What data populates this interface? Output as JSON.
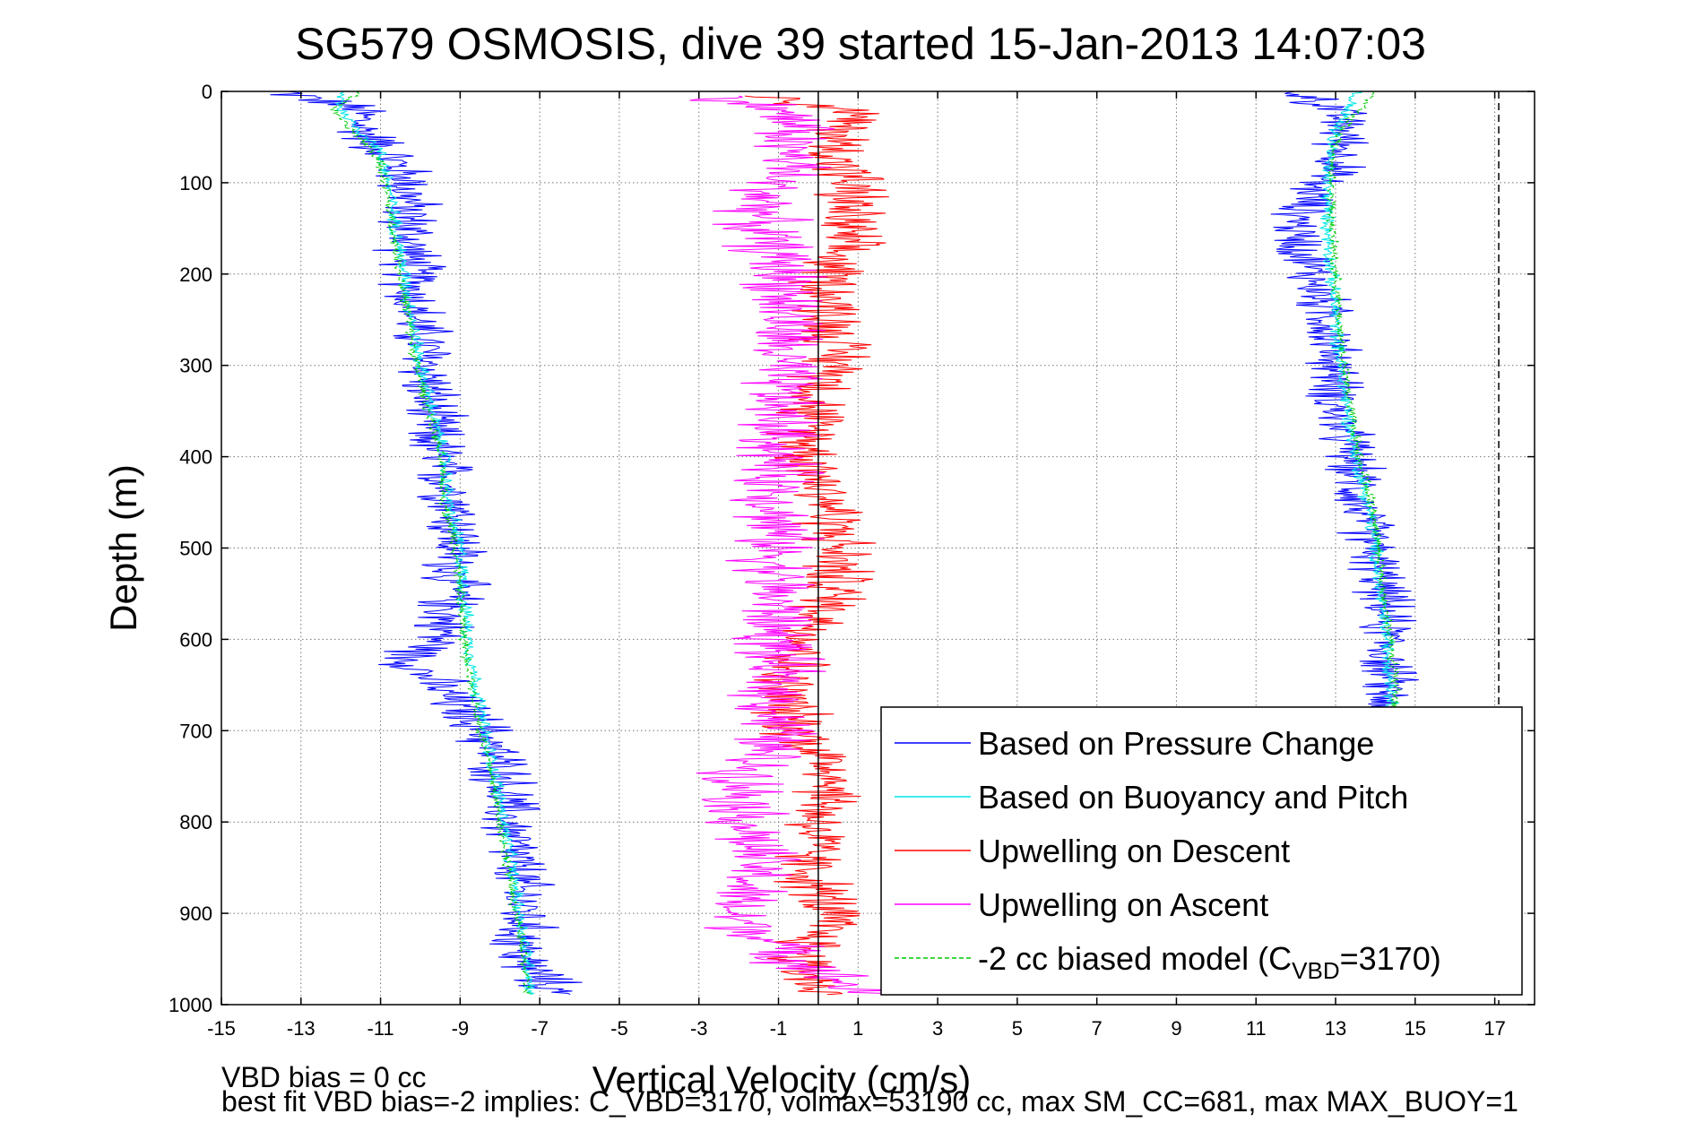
{
  "chart_data": {
    "type": "line",
    "title": "SG579 OSMOSIS, dive 39 started 15-Jan-2013 14:07:03",
    "xlabel": "Vertical Velocity (cm/s)",
    "ylabel": "Depth (m)",
    "xlim": [
      -15,
      18
    ],
    "ylim": [
      0,
      1000
    ],
    "y_reversed": true,
    "grid": true,
    "x_ticks": [
      "-15",
      "-13",
      "-11",
      "-9",
      "-7",
      "-5",
      "-3",
      "-1",
      "1",
      "3",
      "5",
      "7",
      "9",
      "11",
      "13",
      "15",
      "17"
    ],
    "y_ticks": [
      "0",
      "100",
      "200",
      "300",
      "400",
      "500",
      "600",
      "700",
      "800",
      "900",
      "1000"
    ],
    "legend_placement": "bottom-right",
    "vertical_lines": [
      {
        "x": 0,
        "style": "solid",
        "color": "#000000"
      },
      {
        "x": 17.1,
        "style": "dashed",
        "color": "#000000"
      }
    ],
    "series": [
      {
        "name": "Based on Pressure Change",
        "color": "#0000ff",
        "segments": [
          {
            "depth": [
              0,
              20,
              40,
              60,
              80,
              100,
              150,
              200,
              250,
              300,
              350,
              400,
              450,
              500,
              550,
              600,
              620,
              650,
              700,
              750,
              800,
              850,
              900,
              950,
              990
            ],
            "v": [
              -13.5,
              -11.5,
              -11.5,
              -11.0,
              -10.6,
              -10.3,
              -10.3,
              -10.2,
              -10.1,
              -9.8,
              -9.8,
              -9.6,
              -9.1,
              -9.1,
              -9.2,
              -9.5,
              -10.3,
              -9.6,
              -8.4,
              -7.9,
              -7.8,
              -7.6,
              -7.4,
              -7.5,
              -6.5
            ],
            "noise": 0.7
          },
          {
            "depth": [
              0,
              20,
              40,
              60,
              80,
              100,
              150,
              200,
              250,
              300,
              350,
              400,
              450,
              500,
              550,
              600,
              650,
              680
            ],
            "v": [
              12.0,
              13.0,
              13.2,
              13.2,
              13.1,
              12.5,
              12.0,
              12.4,
              12.8,
              13.0,
              13.0,
              13.4,
              13.6,
              13.9,
              14.2,
              14.3,
              14.3,
              14.3
            ],
            "noise": 0.6
          }
        ]
      },
      {
        "name": "Based on Buoyancy and Pitch",
        "color": "#00e6e6",
        "segments": [
          {
            "depth": [
              0,
              20,
              40,
              60,
              80,
              100,
              150,
              200,
              250,
              300,
              350,
              400,
              450,
              500,
              550,
              600,
              650,
              700,
              750,
              800,
              850,
              900,
              950,
              990
            ],
            "v": [
              -12.0,
              -12.0,
              -11.6,
              -11.1,
              -10.9,
              -10.8,
              -10.6,
              -10.4,
              -10.2,
              -10.0,
              -9.7,
              -9.4,
              -9.3,
              -9.0,
              -8.9,
              -8.8,
              -8.6,
              -8.4,
              -8.1,
              -7.9,
              -7.7,
              -7.5,
              -7.3,
              -7.2
            ],
            "noise": 0.15
          },
          {
            "depth": [
              0,
              20,
              40,
              60,
              80,
              100,
              150,
              200,
              250,
              300,
              350,
              400,
              450,
              500,
              550,
              600,
              650,
              680
            ],
            "v": [
              13.5,
              13.3,
              13.0,
              12.9,
              12.8,
              12.8,
              12.8,
              12.9,
              13.0,
              13.1,
              13.3,
              13.5,
              13.8,
              14.0,
              14.1,
              14.3,
              14.4,
              14.4
            ],
            "noise": 0.15
          }
        ]
      },
      {
        "name": "Upwelling on Descent",
        "color": "#ff0000",
        "segments": [
          {
            "depth": [
              5,
              20,
              40,
              60,
              80,
              100,
              150,
              200,
              250,
              300,
              350,
              400,
              450,
              500,
              550,
              600,
              650,
              700,
              750,
              800,
              850,
              900,
              950,
              990
            ],
            "v": [
              -1.5,
              0.8,
              0.6,
              0.4,
              0.6,
              0.8,
              0.7,
              0.3,
              0.3,
              0.5,
              -0.2,
              -0.2,
              0.3,
              0.5,
              0.4,
              -0.2,
              -1.0,
              -0.5,
              0.5,
              0.0,
              -0.3,
              0.3,
              -0.4,
              0.1
            ],
            "noise": 0.8
          }
        ]
      },
      {
        "name": "Upwelling on Ascent",
        "color": "#ff00ff",
        "segments": [
          {
            "depth": [
              5,
              20,
              40,
              60,
              80,
              100,
              150,
              200,
              250,
              300,
              650,
              700,
              750,
              800,
              850,
              900,
              950,
              990
            ],
            "v": [
              -2.5,
              -1.0,
              -0.5,
              -0.8,
              -0.6,
              -1.2,
              -1.5,
              -0.8,
              -0.8,
              -1.0,
              -1.1,
              -1.0,
              -1.8,
              -1.8,
              -1.5,
              -2.2,
              -0.6,
              1.2
            ],
            "noise": 0.9
          }
        ]
      },
      {
        "name": "-2 cc biased model (C",
        "subscript": "VBD",
        "suffix": "=3170)",
        "color": "#00cc00",
        "dashed": true,
        "segments": [
          {
            "depth": [
              0,
              20,
              40,
              60,
              80,
              100,
              150,
              200,
              250,
              300,
              350,
              400,
              450,
              500,
              550,
              600,
              650,
              700,
              750,
              800,
              850,
              900,
              950,
              990
            ],
            "v": [
              -11.5,
              -12.2,
              -11.8,
              -11.3,
              -11.0,
              -10.9,
              -10.7,
              -10.5,
              -10.3,
              -10.1,
              -9.8,
              -9.5,
              -9.4,
              -9.1,
              -9.0,
              -8.9,
              -8.7,
              -8.5,
              -8.2,
              -8.0,
              -7.8,
              -7.6,
              -7.4,
              -7.3
            ],
            "noise": 0.1
          },
          {
            "depth": [
              0,
              20,
              40,
              60,
              80,
              100,
              150,
              200,
              250,
              300,
              350,
              400,
              450,
              500,
              550,
              600,
              650,
              680
            ],
            "v": [
              14.0,
              13.6,
              13.2,
              13.0,
              12.9,
              12.9,
              12.9,
              13.0,
              13.1,
              13.2,
              13.4,
              13.6,
              13.9,
              14.1,
              14.2,
              14.4,
              14.5,
              14.5
            ],
            "noise": 0.1
          }
        ]
      }
    ]
  },
  "footer": {
    "line1": "VBD bias = 0 cc",
    "line2": "best fit VBD bias=-2 implies: C_VBD=3170, volmax=53190 cc, max SM_CC=681, max MAX_BUOY=1"
  }
}
